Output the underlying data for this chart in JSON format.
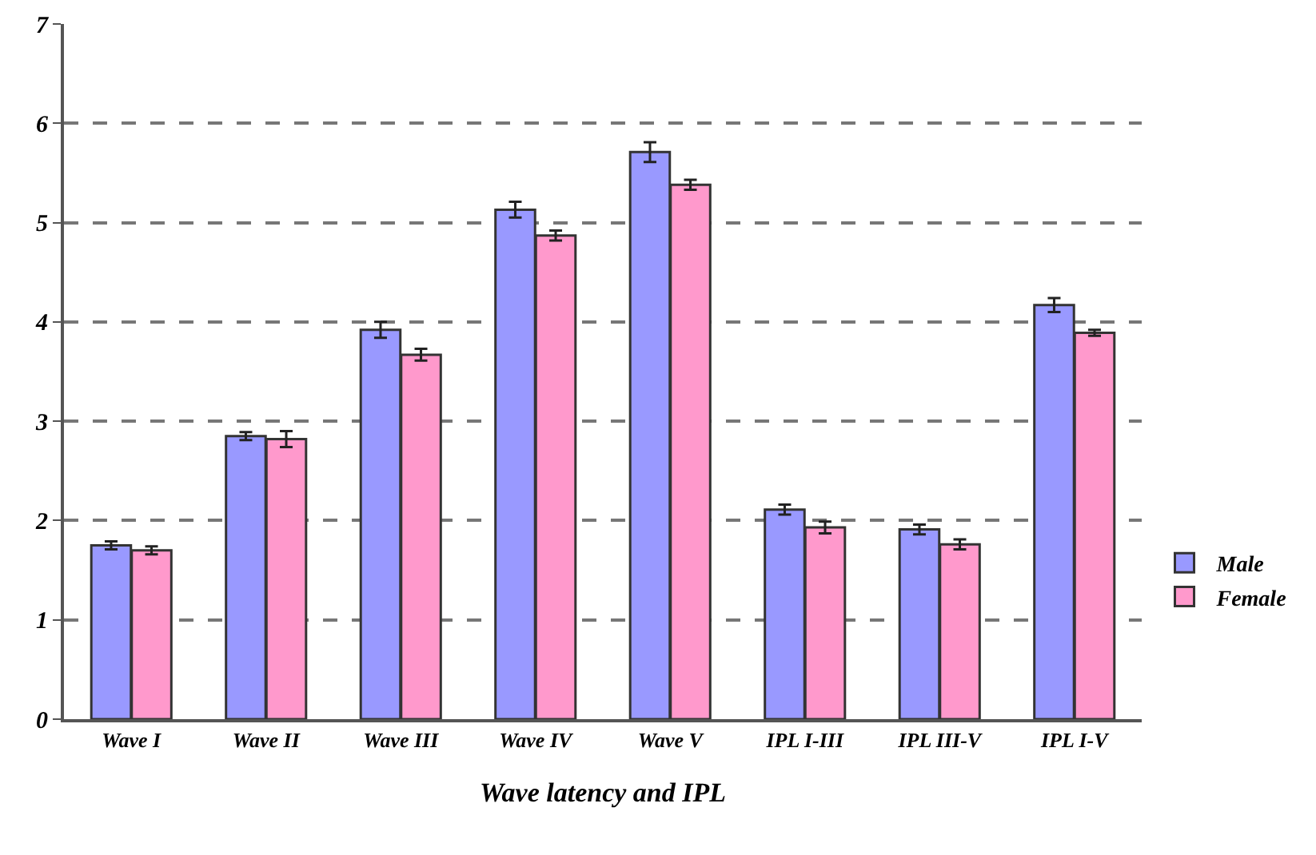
{
  "chart_data": {
    "type": "bar",
    "xlabel": "Wave latency and IPL",
    "categories": [
      "Wave I",
      "Wave II",
      "Wave III",
      "Wave IV",
      "Wave V",
      "IPL I-III",
      "IPL III-V",
      "IPL I-V"
    ],
    "series": [
      {
        "name": "Male",
        "color": "#9999ff",
        "values": [
          1.75,
          2.85,
          3.92,
          5.13,
          5.71,
          2.11,
          1.91,
          4.17
        ],
        "errors": [
          0.04,
          0.04,
          0.08,
          0.08,
          0.1,
          0.05,
          0.05,
          0.07
        ]
      },
      {
        "name": "Female",
        "color": "#ff99cc",
        "values": [
          1.7,
          2.82,
          3.67,
          4.87,
          5.38,
          1.93,
          1.76,
          3.89
        ],
        "errors": [
          0.04,
          0.08,
          0.06,
          0.05,
          0.05,
          0.06,
          0.05,
          0.03
        ]
      }
    ],
    "ylim": [
      0,
      7
    ],
    "yticks": [
      0,
      1,
      2,
      3,
      4,
      5,
      6,
      7
    ],
    "grid": "y",
    "legend": "right"
  }
}
